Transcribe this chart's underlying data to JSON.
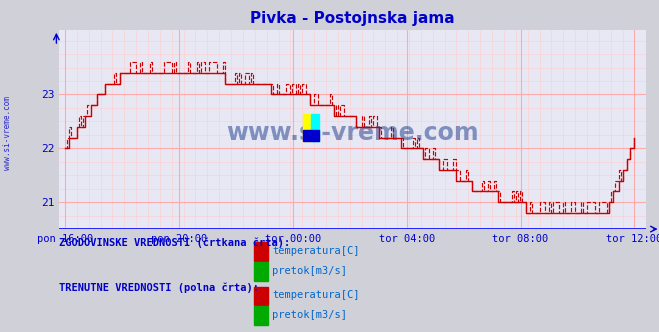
{
  "title": "Pivka - Postojnska jama",
  "title_color": "#0000cc",
  "bg_color": "#d0d0d8",
  "plot_bg_color": "#e8e8f4",
  "grid_major_color": "#ffaaaa",
  "grid_minor_color": "#ffcccc",
  "axis_color": "#0000cc",
  "line_color": "#cc0000",
  "watermark_color": "#1a3a8a",
  "x_labels": [
    "pon 16:00",
    "pon 20:00",
    "tor 00:00",
    "tor 04:00",
    "tor 08:00",
    "tor 12:00"
  ],
  "x_ticks_norm": [
    0.0,
    0.2,
    0.4,
    0.6,
    0.8,
    1.0
  ],
  "ylim": [
    20.5,
    24.2
  ],
  "y_ticks": [
    21,
    22,
    23
  ],
  "legend_title1": "ZGODOVINSKE VREDNOSTI (črtkana črta):",
  "legend_title2": "TRENUTNE VREDNOSTI (polna črta):",
  "legend_label1": "temperatura[C]",
  "legend_label2": "pretok[m3/s]",
  "legend_color": "#0000cc",
  "legend_label_color": "#0066cc",
  "sidebar_text": "www.si-vreme.com",
  "n_points": 289
}
